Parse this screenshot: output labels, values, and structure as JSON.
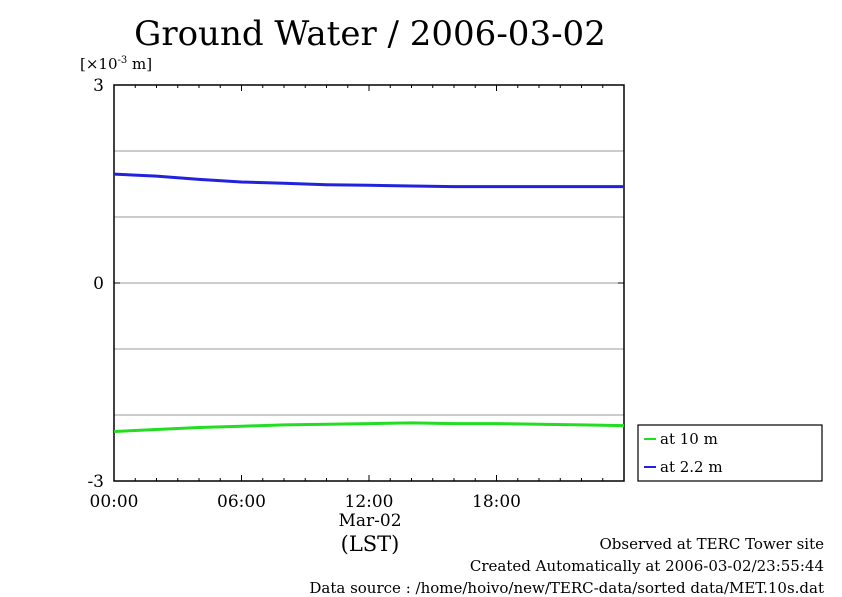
{
  "chart_data": {
    "type": "line",
    "title": "Ground Water / 2006-03-02",
    "unit_label_prefix": "[×10",
    "unit_label_exp": "-3",
    "unit_label_suffix": " m]",
    "xlabel_date": "Mar-02",
    "xlabel": "(LST)",
    "x_ticks": [
      "00:00",
      "06:00",
      "12:00",
      "18:00"
    ],
    "x_tick_hours": [
      0,
      6,
      12,
      18
    ],
    "xlim_hours": [
      0,
      24
    ],
    "y_ticks": [
      "3",
      "0",
      "-3"
    ],
    "y_tick_values": [
      3,
      0,
      -3
    ],
    "ylim": [
      -3,
      3
    ],
    "y_grid": [
      -2,
      -1,
      0,
      1,
      2
    ],
    "grid": "horizontal",
    "legend_position": "bottom-right, outside plot",
    "series": [
      {
        "name": "at 10 m",
        "color": "#22dd22",
        "x_hours": [
          0,
          2,
          4,
          6,
          8,
          10,
          12,
          14,
          16,
          18,
          20,
          22,
          24
        ],
        "values": [
          -2.25,
          -2.22,
          -2.19,
          -2.17,
          -2.15,
          -2.14,
          -2.13,
          -2.12,
          -2.13,
          -2.13,
          -2.14,
          -2.15,
          -2.16
        ]
      },
      {
        "name": "at 2.2 m",
        "color": "#2222dd",
        "x_hours": [
          0,
          2,
          4,
          6,
          8,
          10,
          12,
          14,
          16,
          18,
          20,
          22,
          24
        ],
        "values": [
          1.65,
          1.62,
          1.57,
          1.53,
          1.51,
          1.49,
          1.48,
          1.47,
          1.46,
          1.46,
          1.46,
          1.46,
          1.46
        ]
      }
    ]
  },
  "footer": {
    "line1": "Observed at TERC Tower site",
    "line2": "Created Automatically at 2006-03-02/23:55:44",
    "line3": "Data source : /home/hoivo/new/TERC-data/sorted  data/MET.10s.dat"
  }
}
